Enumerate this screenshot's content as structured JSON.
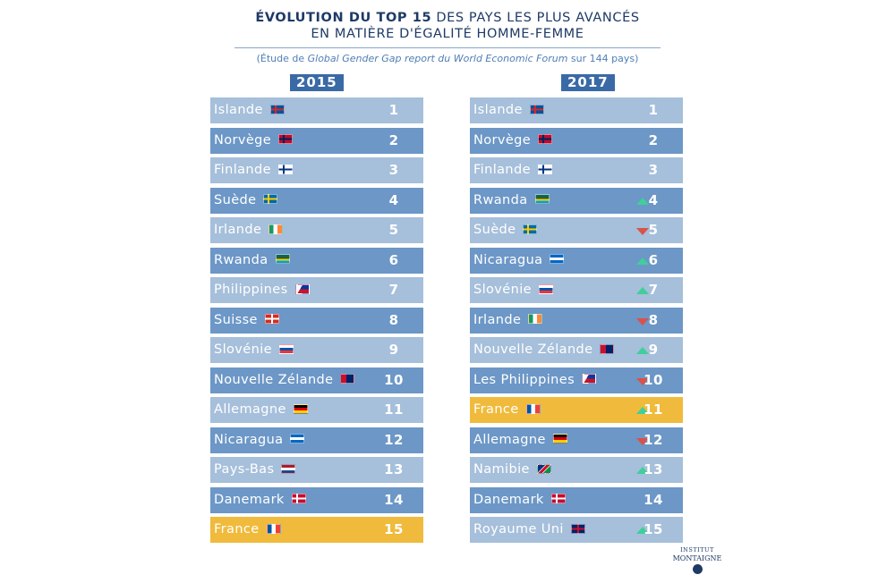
{
  "header": {
    "title_bold": "ÉVOLUTION DU TOP 15",
    "title_rest": " DES PAYS LES PLUS AVANCÉS",
    "title_line2": "EN MATIÈRE D'ÉGALITÉ HOMME-FEMME",
    "subtitle_pre": "(Étude de ",
    "subtitle_italic": "Global Gender Gap report du World Economic Forum",
    "subtitle_post": " sur 144 pays)"
  },
  "logo": {
    "line1": "INSTITUT",
    "line2": "MONTAIGNE"
  },
  "chart_data": {
    "type": "table",
    "columns": [
      {
        "year": "2015",
        "rows": [
          {
            "country": "Islande",
            "rank": "1",
            "flag": "iceland-flag-icon",
            "highlight": false,
            "trend": ""
          },
          {
            "country": "Norvège",
            "rank": "2",
            "flag": "norway-flag-icon",
            "highlight": false,
            "trend": ""
          },
          {
            "country": "Finlande",
            "rank": "3",
            "flag": "finland-flag-icon",
            "highlight": false,
            "trend": ""
          },
          {
            "country": "Suède",
            "rank": "4",
            "flag": "sweden-flag-icon",
            "highlight": false,
            "trend": ""
          },
          {
            "country": "Irlande",
            "rank": "5",
            "flag": "ireland-flag-icon",
            "highlight": false,
            "trend": ""
          },
          {
            "country": "Rwanda",
            "rank": "6",
            "flag": "rwanda-flag-icon",
            "highlight": false,
            "trend": ""
          },
          {
            "country": "Philippines",
            "rank": "7",
            "flag": "philippines-flag-icon",
            "highlight": false,
            "trend": ""
          },
          {
            "country": "Suisse",
            "rank": "8",
            "flag": "switzerland-flag-icon",
            "highlight": false,
            "trend": ""
          },
          {
            "country": "Slovénie",
            "rank": "9",
            "flag": "slovenia-flag-icon",
            "highlight": false,
            "trend": ""
          },
          {
            "country": "Nouvelle Zélande",
            "rank": "10",
            "flag": "new-zealand-flag-icon",
            "highlight": false,
            "trend": ""
          },
          {
            "country": "Allemagne",
            "rank": "11",
            "flag": "germany-flag-icon",
            "highlight": false,
            "trend": ""
          },
          {
            "country": "Nicaragua",
            "rank": "12",
            "flag": "nicaragua-flag-icon",
            "highlight": false,
            "trend": ""
          },
          {
            "country": "Pays-Bas",
            "rank": "13",
            "flag": "netherlands-flag-icon",
            "highlight": false,
            "trend": ""
          },
          {
            "country": "Danemark",
            "rank": "14",
            "flag": "denmark-flag-icon",
            "highlight": false,
            "trend": ""
          },
          {
            "country": "France",
            "rank": "15",
            "flag": "france-flag-icon",
            "highlight": true,
            "trend": ""
          }
        ]
      },
      {
        "year": "2017",
        "rows": [
          {
            "country": "Islande",
            "rank": "1",
            "flag": "iceland-flag-icon",
            "highlight": false,
            "trend": ""
          },
          {
            "country": "Norvège",
            "rank": "2",
            "flag": "norway-flag-icon",
            "highlight": false,
            "trend": ""
          },
          {
            "country": "Finlande",
            "rank": "3",
            "flag": "finland-flag-icon",
            "highlight": false,
            "trend": ""
          },
          {
            "country": "Rwanda",
            "rank": "4",
            "flag": "rwanda-flag-icon",
            "highlight": false,
            "trend": "up"
          },
          {
            "country": "Suède",
            "rank": "5",
            "flag": "sweden-flag-icon",
            "highlight": false,
            "trend": "down"
          },
          {
            "country": "Nicaragua",
            "rank": "6",
            "flag": "nicaragua-flag-icon",
            "highlight": false,
            "trend": "up"
          },
          {
            "country": "Slovénie",
            "rank": "7",
            "flag": "slovenia-flag-icon",
            "highlight": false,
            "trend": "up"
          },
          {
            "country": "Irlande",
            "rank": "8",
            "flag": "ireland-flag-icon",
            "highlight": false,
            "trend": "down"
          },
          {
            "country": "Nouvelle Zélande",
            "rank": "9",
            "flag": "new-zealand-flag-icon",
            "highlight": false,
            "trend": "up"
          },
          {
            "country": "Les Philippines",
            "rank": "10",
            "flag": "philippines-flag-icon",
            "highlight": false,
            "trend": "down"
          },
          {
            "country": "France",
            "rank": "11",
            "flag": "france-flag-icon",
            "highlight": true,
            "trend": "up"
          },
          {
            "country": "Allemagne",
            "rank": "12",
            "flag": "germany-flag-icon",
            "highlight": false,
            "trend": "down"
          },
          {
            "country": "Namibie",
            "rank": "13",
            "flag": "namibia-flag-icon",
            "highlight": false,
            "trend": "up"
          },
          {
            "country": "Danemark",
            "rank": "14",
            "flag": "denmark-flag-icon",
            "highlight": false,
            "trend": ""
          },
          {
            "country": "Royaume Uni",
            "rank": "15",
            "flag": "united-kingdom-flag-icon",
            "highlight": false,
            "trend": "up"
          }
        ]
      }
    ]
  },
  "colors": {
    "row_light": "#a6bfdb",
    "row_dark": "#6c97c7",
    "row_highlight": "#f0bb3c",
    "year_badge": "#3a6aa6",
    "arrow_up": "#3fcf9a",
    "arrow_down": "#d8534a",
    "title": "#1e3a66"
  }
}
